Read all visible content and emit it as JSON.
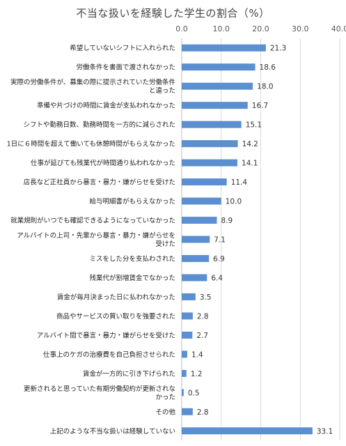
{
  "chart_data": {
    "type": "bar",
    "orientation": "horizontal",
    "title": "不当な扱いを経験した学生の割合（%）",
    "xlim": [
      0,
      40
    ],
    "ticks": [
      "0.0",
      "10.0",
      "20.0",
      "30.0",
      "40.0"
    ],
    "tick_values": [
      0,
      10,
      20,
      30,
      40
    ],
    "grid": true,
    "bar_color": "#5b8fd0",
    "categories": [
      "希望していないシフトに入れられた",
      "労働条件を書面で渡されなかった",
      "実際の労働条件が、募集の際に提示されていた労働条件と違った",
      "準備や片づけの時間に賃金が支払われなかった",
      "シフトや勤務日数、勤務時間を一方的に減らされた",
      "1日に６時間を超えて働いても休憩時間がもらえなかった",
      "仕事が延びても残業代が時間通り払われなかった",
      "店長など正社員から暴言・暴力・嫌がらせを受けた",
      "給与明細書がもらえなかった",
      "就業規則がいつでも確認できるようになっていなかった",
      "アルバイトの上司・先輩から暴言・暴力・嫌がらせを受けた",
      "ミスをした分を支払わされた",
      "残業代が割増賃金でなかった",
      "賃金が毎月決まった日に払われなかった",
      "商品やサービスの買い取りを強要された",
      "アルバイト間で暴言・暴力・嫌がらせを受けた",
      "仕事上のケガの治療費を自己負担させられた",
      "賃金が一方的に引き下げられた",
      "更新されると思っていた有期労働契約が更新されなかった",
      "その他",
      "上記のような不当な扱いは経験していない"
    ],
    "category_lines": [
      [
        "希望していないシフトに入れられた"
      ],
      [
        "労働条件を書面で渡されなかった"
      ],
      [
        "実際の労働条件が、募集の際に提示されていた労働条件",
        "と違った"
      ],
      [
        "準備や片づけの時間に賃金が支払われなかった"
      ],
      [
        "シフトや勤務日数、勤務時間を一方的に減らされた"
      ],
      [
        "1日に６時間を超えて働いても休憩時間がもらえなかった"
      ],
      [
        "仕事が延びても残業代が時間通り払われなかった"
      ],
      [
        "店長など正社員から暴言・暴力・嫌がらせを受けた"
      ],
      [
        "給与明細書がもらえなかった"
      ],
      [
        "就業規則がいつでも確認できるようになっていなかった"
      ],
      [
        "アルバイトの上司・先輩から暴言・暴力・嫌がらせを",
        "受けた"
      ],
      [
        "ミスをした分を支払わされた"
      ],
      [
        "残業代が割増賃金でなかった"
      ],
      [
        "賃金が毎月決まった日に払われなかった"
      ],
      [
        "商品やサービスの買い取りを強要された"
      ],
      [
        "アルバイト間で暴言・暴力・嫌がらせを受けた"
      ],
      [
        "仕事上のケガの治療費を自己負担させられた"
      ],
      [
        "賃金が一方的に引き下げられた"
      ],
      [
        "更新されると思っていた有期労働契約が更新されな",
        "かった"
      ],
      [
        "その他"
      ],
      [
        "上記のような不当な扱いは経験していない"
      ]
    ],
    "values": [
      21.3,
      18.6,
      18.0,
      16.7,
      15.1,
      14.2,
      14.1,
      11.4,
      10.0,
      8.9,
      7.1,
      6.9,
      6.4,
      3.5,
      2.8,
      2.7,
      1.4,
      1.2,
      0.5,
      2.8,
      33.1
    ],
    "value_labels": [
      "21.3",
      "18.6",
      "18.0",
      "16.7",
      "15.1",
      "14.2",
      "14.1",
      "11.4",
      "10.0",
      "8.9",
      "7.1",
      "6.9",
      "6.4",
      "3.5",
      "2.8",
      "2.7",
      "1.4",
      "1.2",
      "0.5",
      "2.8",
      "33.1"
    ]
  }
}
